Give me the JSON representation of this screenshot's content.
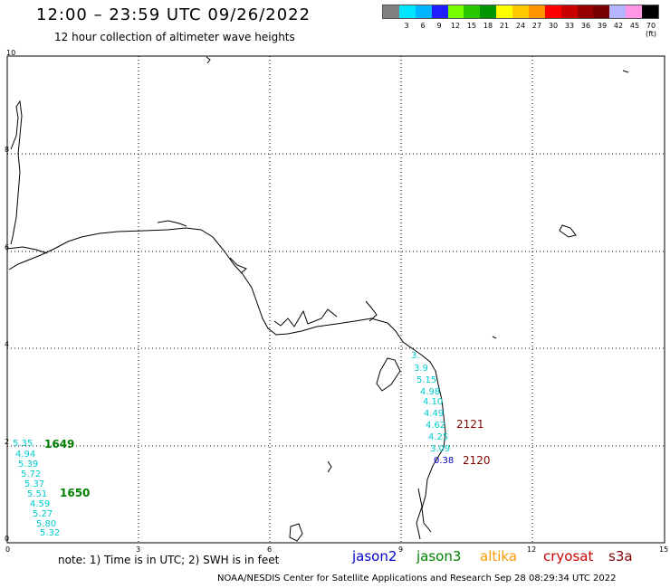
{
  "header": {
    "title": "12:00 – 23:59 UTC 09/26/2022",
    "subtitle": "12 hour collection of altimeter wave heights"
  },
  "legend": {
    "colors": [
      "#808080",
      "#00e5ff",
      "#00b4ff",
      "#1e1eff",
      "#78ff00",
      "#28c800",
      "#009600",
      "#ffff00",
      "#ffc800",
      "#ff9600",
      "#ff0000",
      "#c80000",
      "#960000",
      "#780000",
      "#b4b4ff",
      "#ff96e6",
      "#000000"
    ],
    "labels": [
      "3",
      "6",
      "9",
      "12",
      "15",
      "18",
      "21",
      "24",
      "27",
      "30",
      "33",
      "36",
      "39",
      "42",
      "45",
      "70 (ft)"
    ]
  },
  "axes": {
    "x_ticks": [
      "0",
      "3",
      "6",
      "9",
      "12",
      "15"
    ],
    "y_ticks": [
      "10",
      "8",
      "6",
      "4",
      "2",
      "0"
    ]
  },
  "tracks": {
    "cyan_east": [
      "3.",
      "3.9",
      "5.15",
      "4.98",
      "4.10",
      "4.49",
      "4.62",
      "4.25",
      "3.09"
    ],
    "blue_point": "0.38",
    "cyan_west": [
      "5.35",
      "4.94",
      "5.39",
      "5.72",
      "5.37",
      "5.51",
      "4.59",
      "5.27",
      "5.80",
      "5.32"
    ],
    "time_labels": {
      "t2121": "2121",
      "t2120": "2120",
      "t1649": "1649",
      "t1650": "1650"
    }
  },
  "footer": {
    "note": "note: 1) Time is in UTC; 2) SWH is in feet",
    "satellites": [
      {
        "name": "jason2",
        "color": "#0000cc"
      },
      {
        "name": "jason3",
        "color": "#008000"
      },
      {
        "name": "altika",
        "color": "#ff9900"
      },
      {
        "name": "cryosat",
        "color": "#cc0000"
      },
      {
        "name": "s3a",
        "color": "#800000"
      }
    ],
    "credit": "NOAA/NESDIS Center for Satellite Applications and Research    Sep 28 08:29:34 UTC 2022"
  }
}
